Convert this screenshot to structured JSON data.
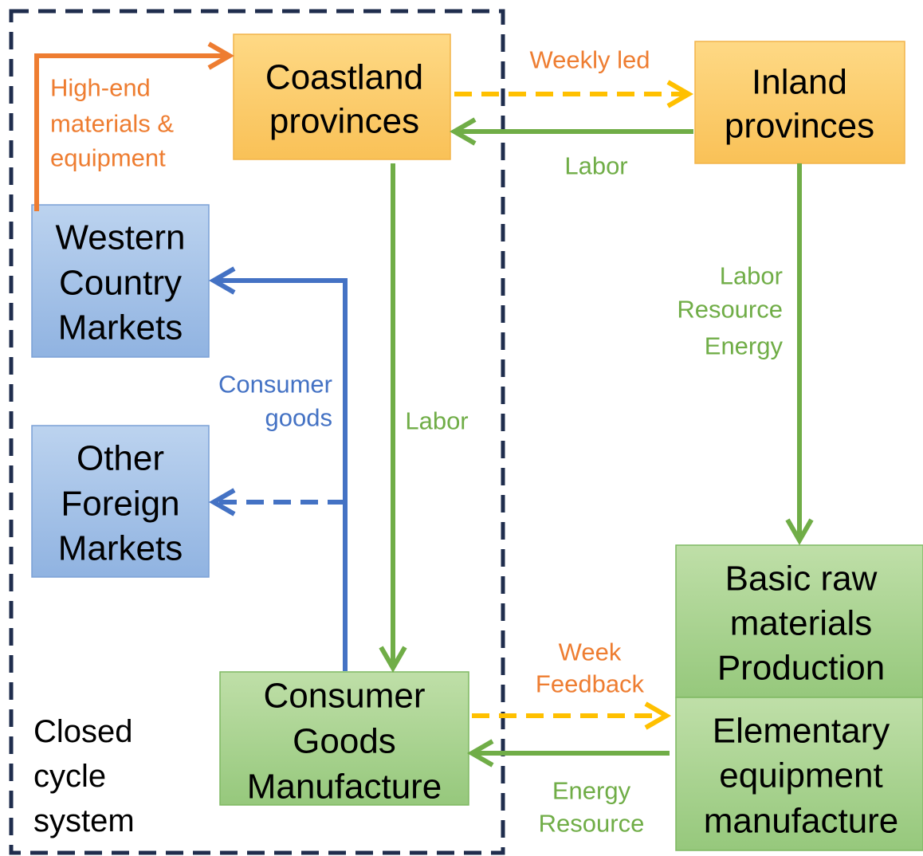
{
  "nodes": [
    {
      "lines": [
        "Coastland",
        "provinces"
      ]
    },
    {
      "lines": [
        "Inland",
        "provinces"
      ]
    },
    {
      "lines": [
        "Western",
        "Country",
        "Markets"
      ]
    },
    {
      "lines": [
        "Other",
        "Foreign",
        "Markets"
      ]
    },
    {
      "lines": [
        "Consumer",
        "Goods",
        "Manufacture"
      ]
    },
    {
      "lines": [
        "Basic raw",
        "materials",
        "Production"
      ]
    },
    {
      "lines": [
        "Elementary",
        "equipment",
        "manufacture"
      ]
    }
  ],
  "edge_labels": [
    {
      "lines": [
        "High-end",
        "materials &",
        "equipment"
      ]
    },
    {
      "lines": [
        "Weekly led"
      ]
    },
    {
      "lines": [
        "Labor"
      ]
    },
    {
      "lines": [
        "Labor"
      ]
    },
    {
      "lines": [
        "Labor",
        "Resource",
        "Energy"
      ]
    },
    {
      "lines": [
        "Consumer",
        "goods"
      ]
    },
    {
      "lines": [
        "Week",
        "Feedback"
      ]
    },
    {
      "lines": [
        "Energy",
        "Resource"
      ]
    }
  ],
  "note": {
    "lines": [
      "Closed",
      "cycle",
      "system"
    ]
  }
}
